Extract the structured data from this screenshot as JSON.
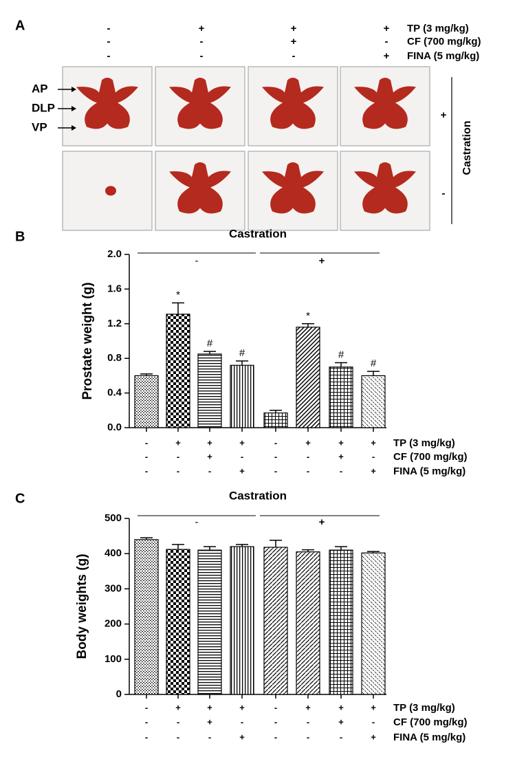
{
  "panel_a": {
    "label": "A",
    "conditions": [
      {
        "label": "TP (3 mg/kg)",
        "signs": [
          "-",
          "+",
          "+",
          "+"
        ]
      },
      {
        "label": "CF (700 mg/kg)",
        "signs": [
          "-",
          "-",
          "+",
          "-"
        ]
      },
      {
        "label": "FINA (5 mg/kg)",
        "signs": [
          "-",
          "-",
          "-",
          "+"
        ]
      }
    ],
    "organ_labels": [
      "AP",
      "DLP",
      "VP"
    ],
    "row_signs": [
      "+",
      "-"
    ],
    "row_label": "Castration"
  },
  "chart_data": [
    {
      "type": "bar",
      "panel_label": "B",
      "title": "Castration",
      "ylabel": "Prostate weight (g)",
      "group_labels": [
        "-",
        "+"
      ],
      "categories": [
        null,
        null,
        null,
        null,
        null,
        null,
        null,
        null
      ],
      "values": [
        0.6,
        1.31,
        0.85,
        0.72,
        0.17,
        1.16,
        0.7,
        0.6
      ],
      "errors": [
        0.02,
        0.13,
        0.03,
        0.05,
        0.03,
        0.04,
        0.05,
        0.05
      ],
      "markers": [
        null,
        "*",
        "#",
        "#",
        null,
        "*",
        "#",
        "#"
      ],
      "color": "#000000",
      "ylim": [
        0,
        2
      ],
      "yticks": [
        {
          "value": 0,
          "label": "0.0"
        },
        0.4,
        0.8,
        1.2,
        1.6,
        {
          "value": 2,
          "label": "2.0"
        }
      ],
      "conditions": [
        {
          "label": "TP (3 mg/kg)",
          "signs": [
            "-",
            "+",
            "+",
            "+",
            "-",
            "+",
            "+",
            "+"
          ]
        },
        {
          "label": "CF (700 mg/kg)",
          "signs": [
            "-",
            "-",
            "+",
            "-",
            "-",
            "-",
            "+",
            "-"
          ]
        },
        {
          "label": "FINA (5 mg/kg)",
          "signs": [
            "-",
            "-",
            "-",
            "+",
            "-",
            "-",
            "-",
            "+"
          ]
        }
      ]
    },
    {
      "type": "bar",
      "panel_label": "C",
      "title": "Castration",
      "ylabel": "Body weights (g)",
      "group_labels": [
        "-",
        "+"
      ],
      "categories": [
        null,
        null,
        null,
        null,
        null,
        null,
        null,
        null
      ],
      "values": [
        440,
        412,
        410,
        420,
        418,
        405,
        410,
        402
      ],
      "errors": [
        5,
        14,
        10,
        6,
        20,
        6,
        10,
        4
      ],
      "color": "#000000",
      "ylim": [
        0,
        500
      ],
      "yticks": [
        0,
        100,
        200,
        300,
        400,
        500
      ],
      "conditions": [
        {
          "label": "TP (3 mg/kg)",
          "signs": [
            "-",
            "+",
            "+",
            "+",
            "-",
            "+",
            "+",
            "+"
          ]
        },
        {
          "label": "CF (700 mg/kg)",
          "signs": [
            "-",
            "-",
            "+",
            "-",
            "-",
            "-",
            "+",
            "-"
          ]
        },
        {
          "label": "FINA (5 mg/kg)",
          "signs": [
            "-",
            "-",
            "-",
            "+",
            "-",
            "-",
            "-",
            "+"
          ]
        }
      ]
    }
  ]
}
